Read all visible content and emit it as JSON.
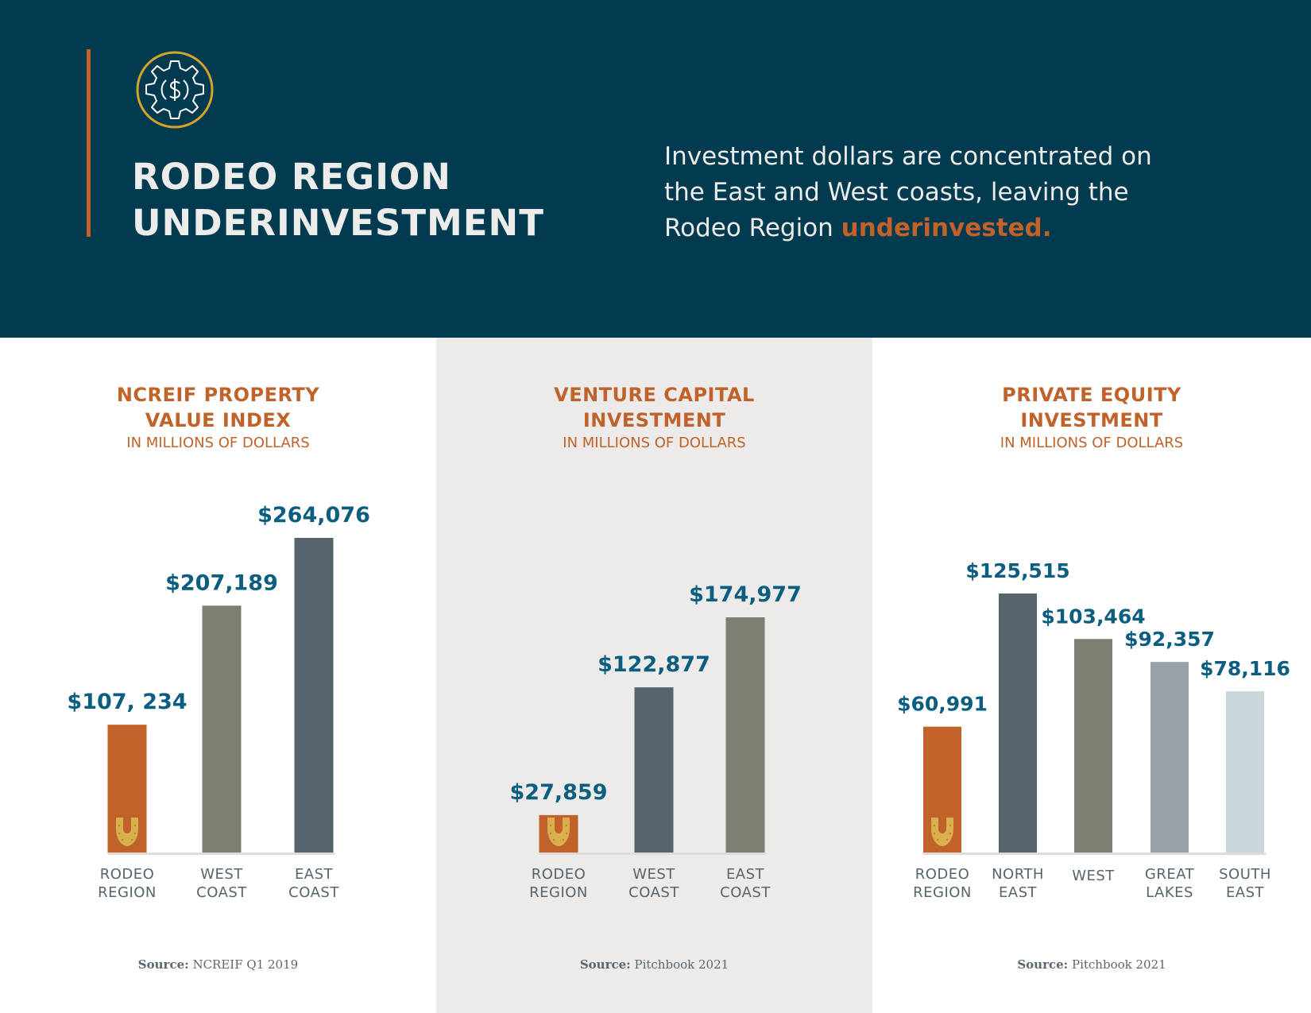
{
  "header": {
    "title_lines": [
      "RODEO REGION",
      "UNDERINVESTMENT"
    ],
    "tagline_lead": "Investment dollars are concentrated on the East and West coasts, leaving the Rodeo Region ",
    "tagline_highlight": "underinvested.",
    "logo_icon": "gear-dollar-icon",
    "colors": {
      "background": "#023a50",
      "accent": "#c0622a",
      "logo_ring": "#d4a52a",
      "text": "#ececea"
    }
  },
  "chart_data": [
    {
      "type": "bar",
      "title": "NCREIF PROPERTY VALUE INDEX",
      "title_lines": [
        "NCREIF PROPERTY",
        "VALUE INDEX"
      ],
      "subtitle": "IN MILLIONS OF DOLLARS",
      "categories": [
        [
          "RODEO",
          "REGION"
        ],
        [
          "WEST",
          "COAST"
        ],
        [
          "EAST",
          "COAST"
        ]
      ],
      "values": [
        107234,
        207189,
        264076
      ],
      "value_labels": [
        "$107, 234",
        "$207,189",
        "$264,076"
      ],
      "colors": [
        "#c0622a",
        "#7e7e72",
        "#56646e"
      ],
      "highlight_icon": "horseshoe-icon",
      "ylim": [
        0,
        264076
      ],
      "grid": false,
      "source_label": "Source:",
      "source_text": "NCREIF Q1 2019"
    },
    {
      "type": "bar",
      "title": "VENTURE CAPITAL INVESTMENT",
      "title_lines": [
        "VENTURE CAPITAL",
        "INVESTMENT"
      ],
      "subtitle": "IN MILLIONS OF DOLLARS",
      "categories": [
        [
          "RODEO",
          "REGION"
        ],
        [
          "WEST",
          "COAST"
        ],
        [
          "EAST",
          "COAST"
        ]
      ],
      "values": [
        27859,
        122877,
        174977
      ],
      "value_labels": [
        "$27,859",
        "$122,877",
        "$174,977"
      ],
      "colors": [
        "#c0622a",
        "#56646e",
        "#7e7e72"
      ],
      "highlight_icon": "horseshoe-icon",
      "ylim": [
        0,
        174977
      ],
      "grid": false,
      "source_label": "Source:",
      "source_text": "Pitchbook 2021"
    },
    {
      "type": "bar",
      "title": "PRIVATE EQUITY INVESTMENT",
      "title_lines": [
        "PRIVATE EQUITY",
        "INVESTMENT"
      ],
      "subtitle": "IN MILLIONS OF DOLLARS",
      "categories": [
        [
          "RODEO",
          "REGION"
        ],
        [
          "NORTH",
          "EAST"
        ],
        [
          "WEST"
        ],
        [
          "GREAT",
          "LAKES"
        ],
        [
          "SOUTH",
          "EAST"
        ]
      ],
      "values": [
        60991,
        125515,
        103464,
        92357,
        78116
      ],
      "value_labels": [
        "$60,991",
        "$125,515",
        "$103,464",
        "$92,357",
        "$78,116"
      ],
      "colors": [
        "#c0622a",
        "#56646e",
        "#7e7e72",
        "#9aa1a6",
        "#cbd6db"
      ],
      "highlight_icon": "horseshoe-icon",
      "ylim": [
        0,
        125515
      ],
      "grid": false,
      "source_label": "Source:",
      "source_text": "Pitchbook 2021"
    }
  ]
}
